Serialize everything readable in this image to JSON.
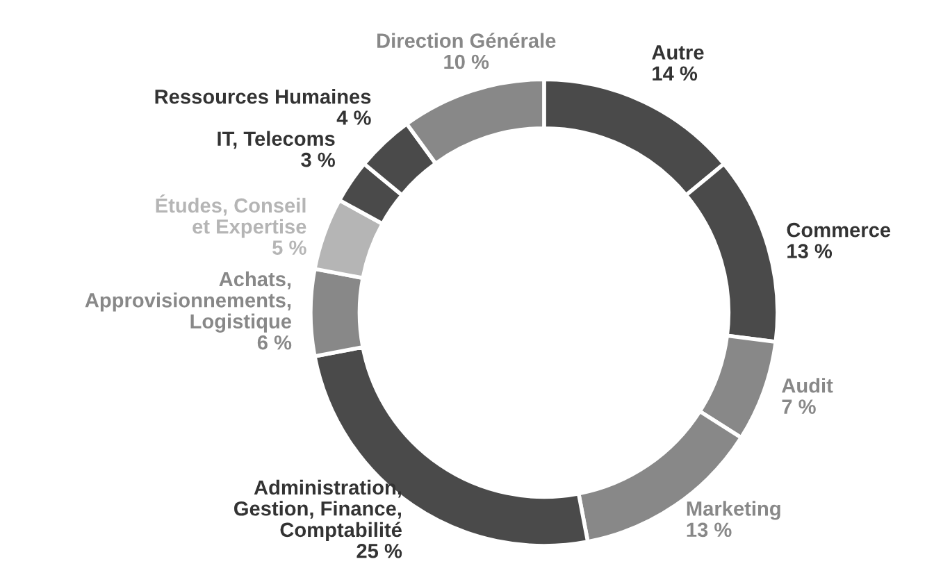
{
  "chart_data": {
    "type": "donut",
    "categories": [
      "Autre",
      "Commerce",
      "Audit",
      "Marketing",
      "Administration,\nGestion, Finance,\nComptabilité",
      "Achats,\nApprovisionnements,\nLogistique",
      "Études, Conseil\net Expertise",
      "IT, Telecoms",
      "Ressources Humaines",
      "Direction Générale"
    ],
    "values": [
      14,
      13,
      7,
      13,
      25,
      6,
      5,
      3,
      4,
      10
    ],
    "value_labels": [
      "14 %",
      "13 %",
      "7 %",
      "13 %",
      "25 %",
      "6 %",
      "5 %",
      "3 %",
      "4 %",
      "10 %"
    ],
    "colors": [
      "#4a4a4a",
      "#4a4a4a",
      "#888888",
      "#888888",
      "#4a4a4a",
      "#888888",
      "#b5b5b5",
      "#4a4a4a",
      "#4a4a4a",
      "#888888"
    ]
  }
}
